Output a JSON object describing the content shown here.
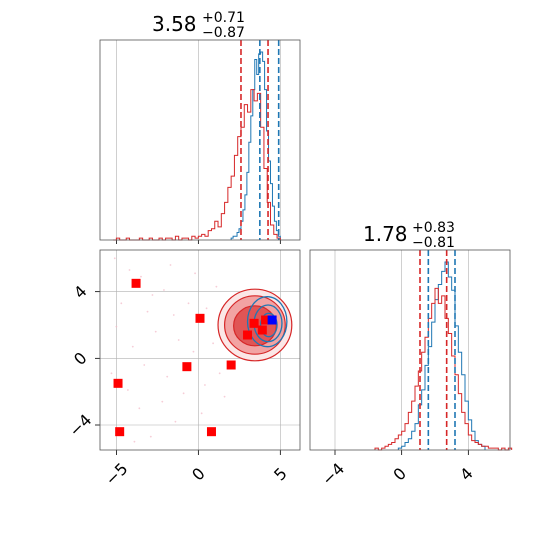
{
  "chart_data": [
    {
      "type": "histogram",
      "panel": "marginal-x",
      "title": {
        "main": "3.58",
        "sup": "+0.71",
        "sub": "−0.87"
      },
      "xlim": [
        -6.0,
        6.2
      ],
      "grid": true,
      "series": [
        {
          "color": "#1f77b4",
          "bin_start": 2.0,
          "bin_width": 0.12,
          "counts": [
            0.01,
            0.02,
            0.02,
            0.04,
            0.06,
            0.1,
            0.16,
            0.24,
            0.36,
            0.52,
            0.66,
            0.8,
            0.96,
            0.88,
            0.99,
            1.0,
            0.95,
            0.8,
            0.58,
            0.42,
            0.3,
            0.18,
            0.1,
            0.05,
            0.02
          ]
        },
        {
          "color": "#d62728",
          "bin_start": -5.2,
          "bin_width": 0.2,
          "counts": [
            0,
            0.01,
            0,
            0,
            0.01,
            0,
            0,
            0,
            0.01,
            0,
            0,
            0.01,
            0,
            0,
            0.01,
            0,
            0.01,
            0.01,
            0,
            0.02,
            0,
            0.01,
            0.01,
            0,
            0.02,
            0.01,
            0.02,
            0.03,
            0.02,
            0.05,
            0.06,
            0.1,
            0.07,
            0.14,
            0.2,
            0.28,
            0.34,
            0.45,
            0.55,
            0.6,
            0.72,
            0.68,
            0.8,
            0.74,
            0.78,
            0.6,
            0.38,
            0.2,
            0.08,
            0.03,
            0.01
          ]
        }
      ],
      "quantile_lines": [
        {
          "color": "#d62728",
          "x": 2.6
        },
        {
          "color": "#d62728",
          "x": 4.25
        },
        {
          "color": "#1f77b4",
          "x": 3.75
        },
        {
          "color": "#1f77b4",
          "x": 4.9
        }
      ]
    },
    {
      "type": "contour-scatter",
      "panel": "joint",
      "xlim": [
        -6.0,
        6.2
      ],
      "ylim": [
        -5.5,
        6.5
      ],
      "x_ticks": [
        -5,
        0,
        5
      ],
      "y_ticks": [
        4,
        0,
        -4
      ],
      "x_tick_labels": [
        "−5",
        "0",
        "5"
      ],
      "y_tick_labels": [
        "4",
        "0",
        "−4"
      ],
      "grid": true,
      "red_contours": [
        {
          "cx": 3.45,
          "cy": 2.0,
          "rx": 2.25,
          "ry": 2.15,
          "fill": "#fbe7e7",
          "stroke": "#d62728"
        },
        {
          "cx": 3.45,
          "cy": 2.0,
          "rx": 1.85,
          "ry": 1.75,
          "fill": "#f2a3a3",
          "stroke": "#d62728"
        },
        {
          "cx": 3.45,
          "cy": 1.95,
          "rx": 1.3,
          "ry": 1.2,
          "fill": "#e05555",
          "stroke": "#d62728"
        }
      ],
      "blue_contours": [
        {
          "cx": 4.2,
          "cy": 2.2,
          "rx": 1.2,
          "ry": 1.5
        },
        {
          "cx": 4.25,
          "cy": 2.1,
          "rx": 0.85,
          "ry": 1.1
        },
        {
          "cx": 4.3,
          "cy": 2.0,
          "rx": 0.5,
          "ry": 0.7
        }
      ],
      "red_markers": [
        {
          "x": -3.8,
          "y": 4.5
        },
        {
          "x": 0.1,
          "y": 2.4
        },
        {
          "x": -4.9,
          "y": -1.5
        },
        {
          "x": -0.7,
          "y": -0.5
        },
        {
          "x": 2.0,
          "y": -0.4
        },
        {
          "x": -4.8,
          "y": -4.4
        },
        {
          "x": 0.8,
          "y": -4.4
        },
        {
          "x": 3.4,
          "y": 2.1
        },
        {
          "x": 3.0,
          "y": 1.4
        },
        {
          "x": 3.9,
          "y": 1.7
        },
        {
          "x": 4.1,
          "y": 2.3
        }
      ],
      "blue_marker": {
        "x": 4.5,
        "y": 2.3
      },
      "scatter_points": [
        [
          -5.1,
          6.0
        ],
        [
          -4.2,
          5.3
        ],
        [
          -3.5,
          4.9
        ],
        [
          -2.8,
          3.8
        ],
        [
          -2.1,
          4.1
        ],
        [
          -4.7,
          3.3
        ],
        [
          -3.1,
          2.8
        ],
        [
          -1.5,
          2.6
        ],
        [
          -0.6,
          3.3
        ],
        [
          0.5,
          3.0
        ],
        [
          -2.6,
          1.6
        ],
        [
          -1.2,
          1.1
        ],
        [
          -4.0,
          0.7
        ],
        [
          -3.3,
          -0.4
        ],
        [
          -1.9,
          -1.1
        ],
        [
          -0.3,
          0.4
        ],
        [
          0.9,
          0.9
        ],
        [
          1.3,
          -0.9
        ],
        [
          -2.2,
          -2.6
        ],
        [
          -0.9,
          -2.1
        ],
        [
          0.4,
          -1.6
        ],
        [
          -3.6,
          -3.0
        ],
        [
          -1.4,
          -3.8
        ],
        [
          1.6,
          -2.3
        ],
        [
          -4.3,
          -1.9
        ],
        [
          2.4,
          0.3
        ],
        [
          1.1,
          4.3
        ],
        [
          -0.2,
          5.1
        ],
        [
          -5.3,
          -0.9
        ],
        [
          -5.0,
          1.9
        ],
        [
          1.9,
          1.6
        ],
        [
          -2.9,
          -4.7
        ],
        [
          0.2,
          -3.3
        ],
        [
          -1.7,
          5.6
        ],
        [
          -3.9,
          -5.0
        ]
      ]
    },
    {
      "type": "histogram",
      "panel": "marginal-y",
      "title": {
        "main": "1.78",
        "sup": "+0.83",
        "sub": "−0.81"
      },
      "xlim": [
        -5.5,
        6.5
      ],
      "x_ticks": [
        -4,
        0,
        4
      ],
      "x_tick_labels": [
        "−4",
        "0",
        "4"
      ],
      "grid": true,
      "series": [
        {
          "color": "#1f77b4",
          "bin_start": -0.2,
          "bin_width": 0.2,
          "counts": [
            0.01,
            0.02,
            0.04,
            0.06,
            0.1,
            0.14,
            0.24,
            0.32,
            0.45,
            0.55,
            0.68,
            0.8,
            0.88,
            0.95,
            1.0,
            0.92,
            0.85,
            0.66,
            0.52,
            0.4,
            0.26,
            0.16,
            0.1,
            0.05,
            0.03,
            0.02
          ]
        },
        {
          "color": "#d62728",
          "bin_start": -1.6,
          "bin_width": 0.2,
          "counts": [
            0.01,
            0,
            0.01,
            0.02,
            0.03,
            0.04,
            0.06,
            0.08,
            0.1,
            0.14,
            0.2,
            0.26,
            0.34,
            0.42,
            0.52,
            0.6,
            0.7,
            0.78,
            0.86,
            0.78,
            0.82,
            0.7,
            0.62,
            0.5,
            0.4,
            0.3,
            0.2,
            0.14,
            0.08,
            0.05,
            0.04,
            0.03,
            0.02,
            0.02,
            0.01,
            0.01,
            0.01,
            0,
            0.01,
            0,
            0.01
          ]
        }
      ],
      "quantile_lines": [
        {
          "color": "#d62728",
          "x": 1.1
        },
        {
          "color": "#d62728",
          "x": 2.7
        },
        {
          "color": "#1f77b4",
          "x": 1.6
        },
        {
          "color": "#1f77b4",
          "x": 3.2
        }
      ]
    }
  ]
}
